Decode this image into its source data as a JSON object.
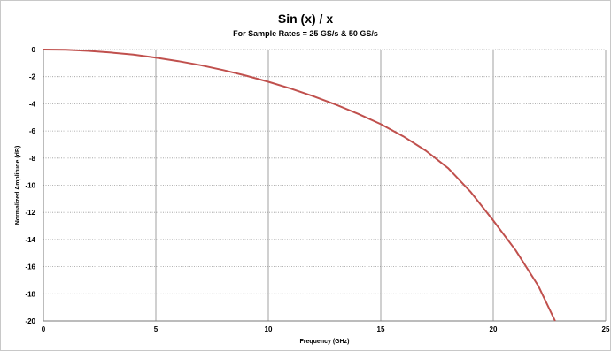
{
  "chart_data": {
    "type": "line",
    "title": "Sin (x) / x",
    "subtitle": "For Sample Rates = 25 GS/s & 50 GS/s",
    "xlabel": "Frequency (GHz)",
    "ylabel": "Normalized Amplitude (dB)",
    "xlim": [
      0,
      25
    ],
    "ylim": [
      -20,
      0
    ],
    "x_ticks": [
      0,
      5,
      10,
      15,
      20,
      25
    ],
    "y_ticks": [
      0,
      -2,
      -4,
      -6,
      -8,
      -10,
      -12,
      -14,
      -16,
      -18,
      -20
    ],
    "grid": true,
    "legend": "none",
    "series": [
      {
        "color": "#c0504d",
        "x": [
          0,
          1,
          2,
          3,
          4,
          5,
          6,
          7,
          8,
          9,
          10,
          11,
          12,
          13,
          14,
          15,
          16,
          17,
          18,
          19,
          20,
          21,
          22,
          22.75
        ],
        "y": [
          0,
          -0.02,
          -0.1,
          -0.22,
          -0.38,
          -0.6,
          -0.86,
          -1.16,
          -1.52,
          -1.92,
          -2.38,
          -2.88,
          -3.44,
          -4.06,
          -4.74,
          -5.5,
          -6.4,
          -7.45,
          -8.75,
          -10.5,
          -12.6,
          -14.8,
          -17.4,
          -20
        ]
      }
    ]
  }
}
